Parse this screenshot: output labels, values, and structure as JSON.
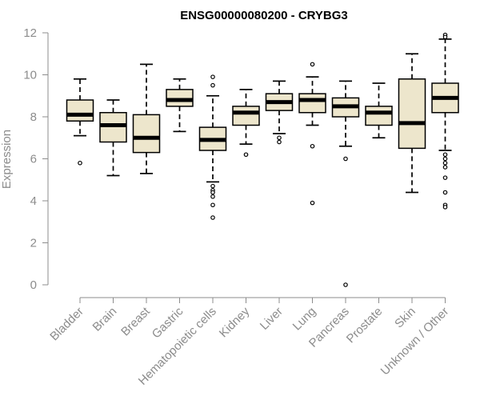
{
  "chart_data": {
    "type": "boxplot",
    "title": "ENSG00000080200 - CRYBG3",
    "xlabel": "",
    "ylabel": "Expression",
    "ylim": [
      0,
      12
    ],
    "yticks": [
      0,
      2,
      4,
      6,
      8,
      10,
      12
    ],
    "grid": false,
    "colors": {
      "box_fill": "#ede6cc",
      "box_stroke": "#000000",
      "median": "#000000",
      "axis": "#8c8c8c"
    },
    "categories": [
      "Bladder",
      "Brain",
      "Breast",
      "Gastric",
      "Hematopoietic cells",
      "Kidney",
      "Liver",
      "Lung",
      "Pancreas",
      "Prostate",
      "Skin",
      "Unknown / Other"
    ],
    "boxes": [
      {
        "whisker_low": 7.1,
        "q1": 7.8,
        "median": 8.1,
        "q3": 8.8,
        "whisker_high": 9.8,
        "outliers": [
          5.8
        ]
      },
      {
        "whisker_low": 5.2,
        "q1": 6.8,
        "median": 7.6,
        "q3": 8.2,
        "whisker_high": 8.8,
        "outliers": []
      },
      {
        "whisker_low": 5.3,
        "q1": 6.3,
        "median": 7.0,
        "q3": 8.1,
        "whisker_high": 10.5,
        "outliers": []
      },
      {
        "whisker_low": 7.3,
        "q1": 8.5,
        "median": 8.8,
        "q3": 9.3,
        "whisker_high": 9.8,
        "outliers": []
      },
      {
        "whisker_low": 4.9,
        "q1": 6.4,
        "median": 6.9,
        "q3": 7.5,
        "whisker_high": 9.0,
        "outliers": [
          9.5,
          9.9,
          4.7,
          4.5,
          4.4,
          4.2,
          3.8,
          3.2
        ]
      },
      {
        "whisker_low": 6.7,
        "q1": 7.6,
        "median": 8.2,
        "q3": 8.5,
        "whisker_high": 9.3,
        "outliers": [
          6.2
        ]
      },
      {
        "whisker_low": 7.2,
        "q1": 8.3,
        "median": 8.7,
        "q3": 9.1,
        "whisker_high": 9.7,
        "outliers": [
          7.0,
          6.8
        ]
      },
      {
        "whisker_low": 7.6,
        "q1": 8.2,
        "median": 8.8,
        "q3": 9.1,
        "whisker_high": 9.9,
        "outliers": [
          10.5,
          6.6,
          3.9
        ]
      },
      {
        "whisker_low": 6.6,
        "q1": 8.0,
        "median": 8.5,
        "q3": 8.9,
        "whisker_high": 9.7,
        "outliers": [
          6.0,
          0.0
        ]
      },
      {
        "whisker_low": 7.0,
        "q1": 7.6,
        "median": 8.2,
        "q3": 8.5,
        "whisker_high": 9.6,
        "outliers": []
      },
      {
        "whisker_low": 4.4,
        "q1": 6.5,
        "median": 7.7,
        "q3": 9.8,
        "whisker_high": 11.0,
        "outliers": []
      },
      {
        "whisker_low": 6.4,
        "q1": 8.2,
        "median": 8.9,
        "q3": 9.6,
        "whisker_high": 11.7,
        "outliers": [
          11.9,
          11.8,
          6.2,
          6.0,
          5.8,
          5.6,
          5.1,
          4.4,
          3.8,
          3.7
        ]
      }
    ]
  }
}
